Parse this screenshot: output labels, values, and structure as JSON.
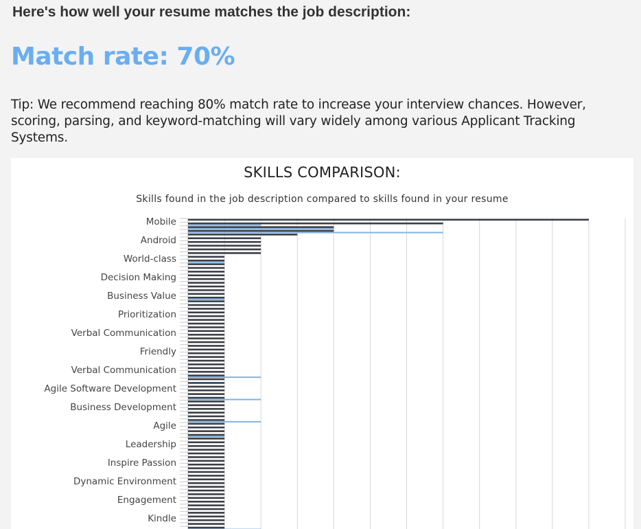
{
  "page": {
    "heading": "Here's how well your resume matches the job description:",
    "match_rate": "Match rate: 70%",
    "tip": "Tip: We recommend reaching 80% match rate to increase your interview chances. However, scoring, parsing, and keyword-matching will vary widely among various Applicant Tracking Systems."
  },
  "colors": {
    "job_series": "#3a3d44",
    "resume_series": "#7fb3e6",
    "grid": "#d6d6d6",
    "accent": "#6aaef0"
  },
  "chart_data": {
    "type": "bar",
    "orientation": "horizontal",
    "title": "SKILLS COMPARISON:",
    "subtitle": "Skills found in the job description compared to skills found in your resume",
    "labeled_categories": [
      "Mobile",
      "Android",
      "World-class",
      "Decision Making",
      "Business Value",
      "Prioritization",
      "Verbal Communication",
      "Friendly",
      "Verbal Communication",
      "Agile Software Development",
      "Business Development",
      "Agile",
      "Leadership",
      "Inspire Passion",
      "Dynamic Environment",
      "Engagement",
      "Kindle"
    ],
    "bars_per_label": 5,
    "series": [
      {
        "values": [
          11,
          7,
          4,
          4,
          3,
          2,
          2,
          2,
          2,
          2,
          1,
          1,
          1,
          1,
          1,
          1,
          1,
          1,
          1,
          1,
          1,
          1,
          1,
          1,
          1,
          1,
          1,
          1,
          1,
          1,
          1,
          1,
          1,
          1,
          1,
          1,
          1,
          1,
          1,
          1,
          1,
          1,
          1,
          1,
          1,
          1,
          1,
          1,
          1,
          1,
          1,
          1,
          1,
          1,
          1,
          1,
          1,
          1,
          1,
          1,
          1,
          1,
          1,
          1,
          1,
          1,
          1,
          1,
          1,
          1,
          1,
          1,
          1,
          1,
          1,
          1,
          1,
          1,
          1,
          1,
          1,
          1,
          1,
          1,
          1
        ]
      },
      {
        "values": [
          0,
          2,
          4,
          7,
          0,
          0,
          0,
          0,
          0,
          0,
          0,
          1,
          0,
          0,
          0,
          0,
          0,
          0,
          0,
          0,
          0,
          1,
          0,
          0,
          0,
          0,
          0,
          0,
          0,
          0,
          0,
          0,
          0,
          0,
          0,
          0,
          0,
          0,
          0,
          0,
          0,
          0,
          2,
          0,
          0,
          0,
          0,
          0,
          2,
          0,
          0,
          0,
          0,
          0,
          2,
          0,
          0,
          0,
          1,
          0,
          0,
          0,
          0,
          0,
          0,
          0,
          0,
          0,
          0,
          0,
          0,
          0,
          0,
          0,
          0,
          0,
          0,
          0,
          0,
          0,
          0,
          0,
          0,
          2,
          0
        ]
      }
    ],
    "xlim": [
      0,
      12
    ],
    "grid": true
  }
}
